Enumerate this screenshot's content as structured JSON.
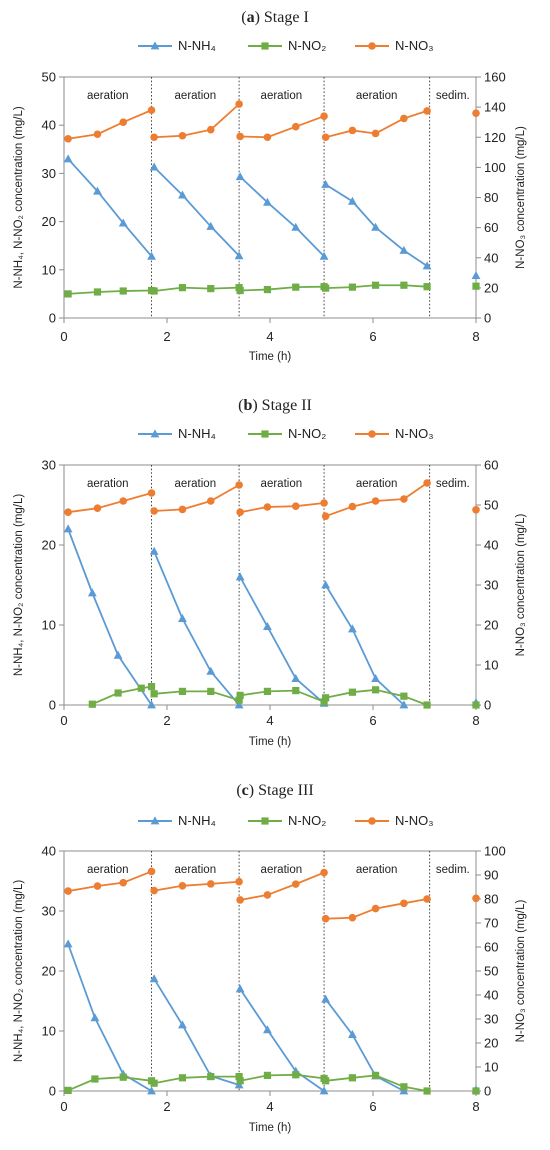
{
  "colors": {
    "nh4": "#5B9BD5",
    "no2": "#70AD47",
    "no3": "#ED7D31"
  },
  "legend": {
    "nh4": "N-NH₄",
    "no2": "N-NO₂",
    "no3": "N-NO₃"
  },
  "chart_data": [
    {
      "type": "line",
      "title_bold": "a",
      "title_rest": "Stage I",
      "xlabel": "Time (h)",
      "ylabel_left": "N-NH₄, N-NO₂ concentration (mg/L)",
      "ylabel_right": "N-NO₃ concentration (mg/L)",
      "xlim": [
        0,
        8
      ],
      "ylim_left": [
        0,
        50
      ],
      "ylim_right": [
        0,
        160
      ],
      "x_ticks": [
        "0",
        "2",
        "4",
        "6",
        "8"
      ],
      "y_left_ticks": [
        "0",
        "10",
        "20",
        "30",
        "40",
        "50"
      ],
      "y_right_ticks": [
        "0",
        "20",
        "40",
        "60",
        "80",
        "100",
        "120",
        "140",
        "160"
      ],
      "phase_boundaries": [
        1.7,
        3.4,
        5.05,
        7.1
      ],
      "phase_labels": [
        {
          "label": "aeration",
          "x": 0.85
        },
        {
          "label": "aeration",
          "x": 2.55
        },
        {
          "label": "aeration",
          "x": 4.22
        },
        {
          "label": "aeration",
          "x": 6.07
        },
        {
          "label": "sedim.",
          "x": 7.55
        }
      ],
      "series": [
        {
          "name": "N-NH₄",
          "axis": "left",
          "marker": "triangle",
          "segments": [
            {
              "x": [
                0.08,
                0.65,
                1.15,
                1.7
              ],
              "y": [
                33,
                26.3,
                19.7,
                12.8
              ]
            },
            {
              "x": [
                1.75,
                2.3,
                2.85,
                3.4
              ],
              "y": [
                31.3,
                25.5,
                19,
                12.9
              ]
            },
            {
              "x": [
                3.42,
                3.95,
                4.5,
                5.05
              ],
              "y": [
                29.3,
                24,
                18.8,
                12.8
              ]
            },
            {
              "x": [
                5.08,
                5.6,
                6.05,
                6.6,
                7.05
              ],
              "y": [
                27.7,
                24.2,
                18.8,
                14,
                10.8
              ]
            }
          ],
          "points": [
            {
              "x": 8,
              "y": 8.8
            }
          ]
        },
        {
          "name": "N-NO₂",
          "axis": "left",
          "marker": "square",
          "segments": [
            {
              "x": [
                0.08,
                0.65,
                1.15,
                1.7
              ],
              "y": [
                5,
                5.4,
                5.6,
                5.7
              ]
            },
            {
              "x": [
                1.75,
                2.3,
                2.85,
                3.4
              ],
              "y": [
                5.6,
                6.3,
                6.1,
                6.3
              ]
            },
            {
              "x": [
                3.42,
                3.95,
                4.5,
                5.05
              ],
              "y": [
                5.7,
                5.9,
                6.4,
                6.5
              ]
            },
            {
              "x": [
                5.08,
                5.6,
                6.05,
                6.6,
                7.05
              ],
              "y": [
                6.2,
                6.4,
                6.8,
                6.8,
                6.5
              ]
            }
          ],
          "points": [
            {
              "x": 8,
              "y": 6.6
            }
          ]
        },
        {
          "name": "N-NO₃",
          "axis": "right",
          "marker": "circle",
          "segments": [
            {
              "x": [
                0.08,
                0.65,
                1.15,
                1.7
              ],
              "y": [
                119,
                122,
                130,
                138
              ]
            },
            {
              "x": [
                1.75,
                2.3,
                2.85,
                3.4
              ],
              "y": [
                120,
                121,
                125,
                142
              ]
            },
            {
              "x": [
                3.42,
                3.95,
                4.5,
                5.05
              ],
              "y": [
                120.5,
                120,
                127,
                134
              ]
            },
            {
              "x": [
                5.08,
                5.6,
                6.05,
                6.6,
                7.05
              ],
              "y": [
                120,
                124.5,
                122.5,
                132.5,
                137.5
              ]
            }
          ],
          "points": [
            {
              "x": 8,
              "y": 136
            }
          ]
        }
      ]
    },
    {
      "type": "line",
      "title_bold": "b",
      "title_rest": "Stage II",
      "xlabel": "Time (h)",
      "ylabel_left": "N-NH₄, N-NO₂ concentration (mg/L)",
      "ylabel_right": "N-NO₃ concentration (mg/L)",
      "xlim": [
        0,
        8
      ],
      "ylim_left": [
        0,
        30
      ],
      "ylim_right": [
        0,
        60
      ],
      "x_ticks": [
        "0",
        "2",
        "4",
        "6",
        "8"
      ],
      "y_left_ticks": [
        "0",
        "10",
        "20",
        "30"
      ],
      "y_right_ticks": [
        "0",
        "10",
        "20",
        "30",
        "40",
        "50",
        "60"
      ],
      "phase_boundaries": [
        1.7,
        3.4,
        5.05,
        7.1
      ],
      "phase_labels": [
        {
          "label": "aeration",
          "x": 0.85
        },
        {
          "label": "aeration",
          "x": 2.55
        },
        {
          "label": "aeration",
          "x": 4.22
        },
        {
          "label": "aeration",
          "x": 6.07
        },
        {
          "label": "sedim.",
          "x": 7.55
        }
      ],
      "series": [
        {
          "name": "N-NH₄",
          "axis": "left",
          "marker": "triangle",
          "segments": [
            {
              "x": [
                0.08,
                0.55,
                1.05,
                1.7
              ],
              "y": [
                22,
                14,
                6.2,
                0
              ]
            },
            {
              "x": [
                1.75,
                2.3,
                2.85,
                3.4
              ],
              "y": [
                19.2,
                10.8,
                4.2,
                0
              ]
            },
            {
              "x": [
                3.42,
                3.95,
                4.5,
                5.05
              ],
              "y": [
                16,
                9.8,
                3.3,
                0.2
              ]
            },
            {
              "x": [
                5.08,
                5.6,
                6.05,
                6.6
              ],
              "y": [
                15,
                9.5,
                3.3,
                0
              ]
            }
          ],
          "points": [
            {
              "x": 8,
              "y": 0.3
            }
          ]
        },
        {
          "name": "N-NO₂",
          "axis": "left",
          "marker": "square",
          "segments": [
            {
              "x": [
                0.55,
                1.05,
                1.5,
                1.7
              ],
              "y": [
                0.1,
                1.5,
                2.1,
                2.3
              ]
            },
            {
              "x": [
                1.75,
                2.3,
                2.85,
                3.4
              ],
              "y": [
                1.4,
                1.7,
                1.7,
                0.6
              ]
            },
            {
              "x": [
                3.42,
                3.95,
                4.5,
                5.05
              ],
              "y": [
                1.2,
                1.7,
                1.8,
                0.4
              ]
            },
            {
              "x": [
                5.08,
                5.6,
                6.05,
                6.6,
                7.05
              ],
              "y": [
                0.9,
                1.6,
                1.9,
                1.1,
                0
              ]
            }
          ],
          "points": [
            {
              "x": 8,
              "y": 0
            }
          ]
        },
        {
          "name": "N-NO₃",
          "axis": "right",
          "marker": "circle",
          "segments": [
            {
              "x": [
                0.08,
                0.65,
                1.15,
                1.7
              ],
              "y": [
                48.2,
                49.2,
                51,
                53
              ]
            },
            {
              "x": [
                1.75,
                2.3,
                2.85,
                3.4
              ],
              "y": [
                48.5,
                48.9,
                51,
                55
              ]
            },
            {
              "x": [
                3.42,
                3.95,
                4.5,
                5.05
              ],
              "y": [
                48.2,
                49.5,
                49.7,
                50.5
              ]
            },
            {
              "x": [
                5.08,
                5.6,
                6.05,
                6.6,
                7.05
              ],
              "y": [
                47.2,
                49.6,
                51,
                51.5,
                55.5
              ]
            }
          ],
          "points": [
            {
              "x": 8,
              "y": 48.8
            }
          ]
        }
      ]
    },
    {
      "type": "line",
      "title_bold": "c",
      "title_rest": "Stage III",
      "xlabel": "Time (h)",
      "ylabel_left": "N-NH₄, N-NO₂ concentration (mg/L)",
      "ylabel_right": "N-NO₃ concentration (mg/L)",
      "xlim": [
        0,
        8
      ],
      "ylim_left": [
        0,
        40
      ],
      "ylim_right": [
        0,
        100
      ],
      "x_ticks": [
        "0",
        "2",
        "4",
        "6",
        "8"
      ],
      "y_left_ticks": [
        "0",
        "10",
        "20",
        "30",
        "40"
      ],
      "y_right_ticks": [
        "0",
        "10",
        "20",
        "30",
        "40",
        "50",
        "60",
        "70",
        "80",
        "90",
        "100"
      ],
      "phase_boundaries": [
        1.7,
        3.4,
        5.05,
        7.1
      ],
      "phase_labels": [
        {
          "label": "aeration",
          "x": 0.85
        },
        {
          "label": "aeration",
          "x": 2.55
        },
        {
          "label": "aeration",
          "x": 4.22
        },
        {
          "label": "aeration",
          "x": 6.07
        },
        {
          "label": "sedim.",
          "x": 7.55
        }
      ],
      "series": [
        {
          "name": "N-NH₄",
          "axis": "left",
          "marker": "triangle",
          "segments": [
            {
              "x": [
                0.08,
                0.6,
                1.15,
                1.7
              ],
              "y": [
                24.5,
                12.2,
                2.8,
                0
              ]
            },
            {
              "x": [
                1.75,
                2.3,
                2.85,
                3.4
              ],
              "y": [
                18.7,
                11,
                2.5,
                1
              ]
            },
            {
              "x": [
                3.42,
                3.95,
                4.5,
                5.05
              ],
              "y": [
                17,
                10.2,
                3.3,
                0
              ]
            },
            {
              "x": [
                5.08,
                5.6,
                6.05,
                6.6
              ],
              "y": [
                15.3,
                9.4,
                2.5,
                0
              ]
            }
          ],
          "points": [
            {
              "x": 8,
              "y": 0.2
            }
          ]
        },
        {
          "name": "N-NO₂",
          "axis": "left",
          "marker": "square",
          "segments": [
            {
              "x": [
                0.08,
                0.6,
                1.15,
                1.7
              ],
              "y": [
                0.1,
                2,
                2.3,
                1.7
              ]
            },
            {
              "x": [
                1.75,
                2.3,
                2.85,
                3.4
              ],
              "y": [
                1.3,
                2.2,
                2.4,
                2.4
              ]
            },
            {
              "x": [
                3.42,
                3.95,
                4.5,
                5.05
              ],
              "y": [
                1.7,
                2.6,
                2.7,
                2.1
              ]
            },
            {
              "x": [
                5.08,
                5.6,
                6.05,
                6.6,
                7.05
              ],
              "y": [
                1.7,
                2.2,
                2.6,
                0.7,
                0
              ]
            }
          ],
          "points": [
            {
              "x": 8,
              "y": 0
            }
          ]
        },
        {
          "name": "N-NO₃",
          "axis": "right",
          "marker": "circle",
          "segments": [
            {
              "x": [
                0.08,
                0.65,
                1.15,
                1.7
              ],
              "y": [
                83.3,
                85.4,
                86.8,
                91.5
              ]
            },
            {
              "x": [
                1.75,
                2.3,
                2.85,
                3.4
              ],
              "y": [
                83.5,
                85.5,
                86.3,
                87.2
              ]
            },
            {
              "x": [
                3.42,
                3.95,
                4.5,
                5.05
              ],
              "y": [
                79.6,
                81.7,
                86.2,
                91
              ]
            },
            {
              "x": [
                5.08,
                5.6,
                6.05,
                6.6,
                7.05
              ],
              "y": [
                71.8,
                72.2,
                76,
                78.2,
                80
              ]
            }
          ],
          "points": [
            {
              "x": 8,
              "y": 80.3
            }
          ]
        }
      ]
    }
  ]
}
